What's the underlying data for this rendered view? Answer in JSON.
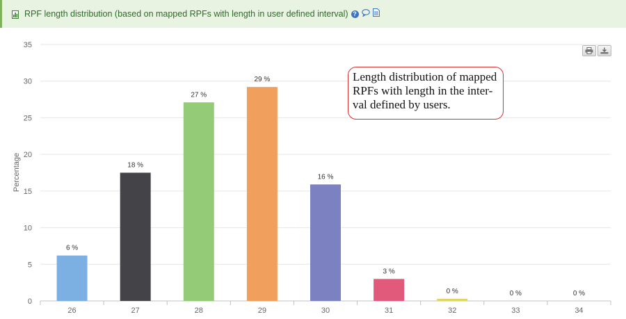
{
  "header": {
    "title": "RPF length distribution (based on mapped RPFs with length in user defined interval)",
    "icons": [
      "chart-icon",
      "help-icon",
      "comment-icon",
      "document-icon"
    ]
  },
  "toolbar": {
    "icons": [
      "print-icon",
      "download-icon"
    ]
  },
  "annotation": {
    "lines": [
      "Length distribution of mapped",
      "RPFs with length in the inter-",
      "val defined by users."
    ]
  },
  "chart_data": {
    "type": "bar",
    "categories": [
      "26",
      "27",
      "28",
      "29",
      "30",
      "31",
      "32",
      "33",
      "34"
    ],
    "values": [
      6.2,
      17.5,
      27.1,
      29.2,
      15.9,
      3.0,
      0.3,
      0,
      0
    ],
    "data_labels": [
      "6 %",
      "18 %",
      "27 %",
      "29 %",
      "16 %",
      "3 %",
      "0 %",
      "0 %",
      "0 %"
    ],
    "colors": [
      "#7cb0e3",
      "#434348",
      "#93cb77",
      "#f0a05c",
      "#7c81c2",
      "#e1597b",
      "#e3d565",
      "#2b908f",
      "#f45b5b"
    ],
    "ylabel": "Percentage",
    "yticks": [
      0,
      5,
      10,
      15,
      20,
      25,
      30,
      35
    ],
    "ylim": [
      0,
      35
    ],
    "grid": true
  }
}
